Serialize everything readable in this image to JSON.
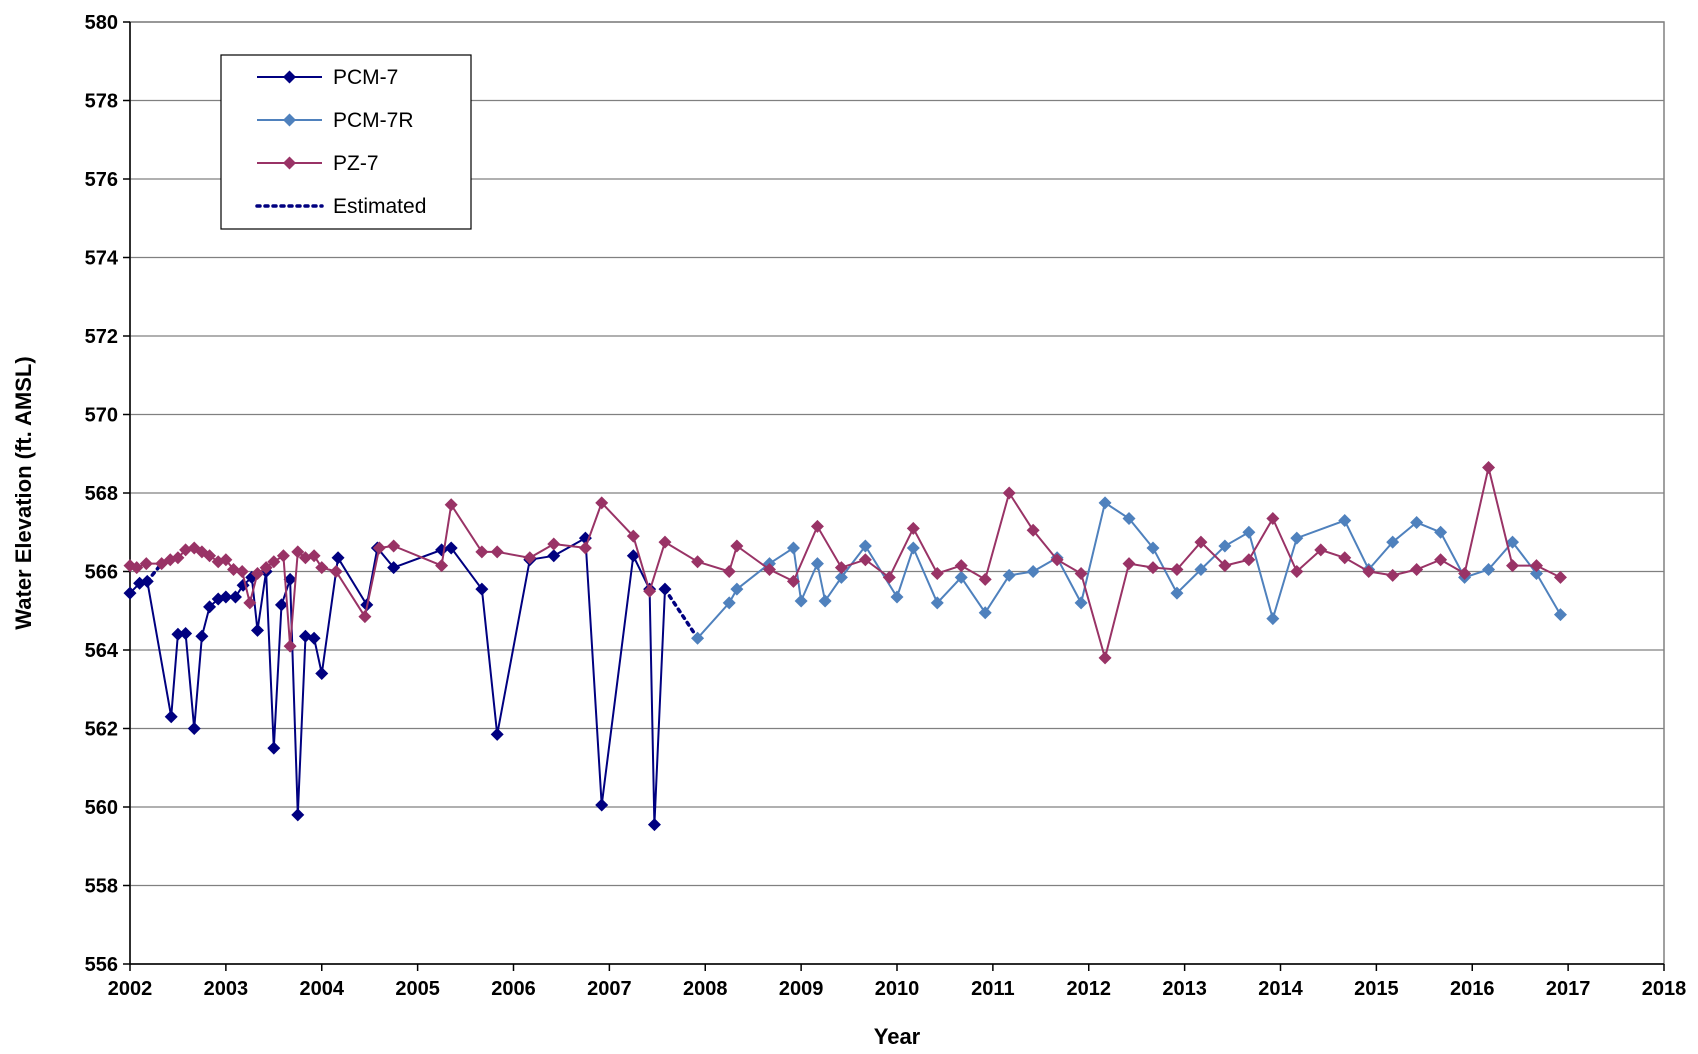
{
  "chart_data": {
    "type": "line",
    "xlabel": "Year",
    "ylabel": "Water Elevation (ft. AMSL)",
    "xlim": [
      2002,
      2018
    ],
    "ylim": [
      556,
      580
    ],
    "x_ticks": [
      2002,
      2003,
      2004,
      2005,
      2006,
      2007,
      2008,
      2009,
      2010,
      2011,
      2012,
      2013,
      2014,
      2015,
      2016,
      2017,
      2018
    ],
    "y_ticks": [
      556,
      558,
      560,
      562,
      564,
      566,
      568,
      570,
      572,
      574,
      576,
      578,
      580
    ],
    "grid": "horizontal",
    "legend_position": "top-left",
    "legend": [
      "PCM-7",
      "PCM-7R",
      "PZ-7",
      "Estimated"
    ],
    "series": [
      {
        "name": "PCM-7",
        "color": "#000080",
        "marker": "diamond",
        "line": "solid",
        "points": [
          [
            2002.0,
            565.45
          ],
          [
            2002.1,
            565.7
          ],
          [
            2002.18,
            565.75
          ],
          [
            2002.43,
            562.3
          ],
          [
            2002.5,
            564.4
          ],
          [
            2002.58,
            564.42
          ],
          [
            2002.67,
            562.0
          ],
          [
            2002.75,
            564.35
          ],
          [
            2002.83,
            565.1
          ],
          [
            2002.92,
            565.3
          ],
          [
            2003.0,
            565.35
          ],
          [
            2003.1,
            565.35
          ],
          [
            2003.18,
            565.65
          ],
          [
            2003.27,
            565.85
          ],
          [
            2003.33,
            564.5
          ],
          [
            2003.42,
            566.0
          ],
          [
            2003.5,
            561.5
          ],
          [
            2003.58,
            565.15
          ],
          [
            2003.67,
            565.8
          ],
          [
            2003.75,
            559.8
          ],
          [
            2003.83,
            564.35
          ],
          [
            2003.92,
            564.3
          ],
          [
            2004.0,
            563.4
          ],
          [
            2004.17,
            566.35
          ],
          [
            2004.47,
            565.15
          ],
          [
            2004.58,
            566.6
          ],
          [
            2004.75,
            566.1
          ],
          [
            2005.25,
            566.55
          ],
          [
            2005.35,
            566.6
          ],
          [
            2005.67,
            565.55
          ],
          [
            2005.83,
            561.85
          ],
          [
            2006.17,
            566.3
          ],
          [
            2006.42,
            566.4
          ],
          [
            2006.75,
            566.85
          ],
          [
            2006.92,
            560.05
          ],
          [
            2007.25,
            566.4
          ],
          [
            2007.42,
            565.55
          ],
          [
            2007.47,
            559.55
          ],
          [
            2007.58,
            565.55
          ]
        ]
      },
      {
        "name": "PCM-7R",
        "color": "#4F81BD",
        "marker": "diamond",
        "line": "solid",
        "points": [
          [
            2007.92,
            564.3
          ],
          [
            2008.25,
            565.2
          ],
          [
            2008.33,
            565.55
          ],
          [
            2008.67,
            566.2
          ],
          [
            2008.92,
            566.6
          ],
          [
            2009.0,
            565.25
          ],
          [
            2009.17,
            566.2
          ],
          [
            2009.25,
            565.25
          ],
          [
            2009.42,
            565.85
          ],
          [
            2009.67,
            566.65
          ],
          [
            2010.0,
            565.35
          ],
          [
            2010.17,
            566.6
          ],
          [
            2010.42,
            565.2
          ],
          [
            2010.67,
            565.85
          ],
          [
            2010.92,
            564.95
          ],
          [
            2011.17,
            565.9
          ],
          [
            2011.42,
            566.0
          ],
          [
            2011.67,
            566.35
          ],
          [
            2011.92,
            565.2
          ],
          [
            2012.17,
            567.75
          ],
          [
            2012.42,
            567.35
          ],
          [
            2012.67,
            566.6
          ],
          [
            2012.92,
            565.45
          ],
          [
            2013.17,
            566.05
          ],
          [
            2013.42,
            566.65
          ],
          [
            2013.67,
            567.0
          ],
          [
            2013.92,
            564.8
          ],
          [
            2014.17,
            566.85
          ],
          [
            2014.67,
            567.3
          ],
          [
            2014.92,
            566.05
          ],
          [
            2015.17,
            566.75
          ],
          [
            2015.42,
            567.25
          ],
          [
            2015.67,
            567.0
          ],
          [
            2015.92,
            565.85
          ],
          [
            2016.17,
            566.05
          ],
          [
            2016.42,
            566.75
          ],
          [
            2016.67,
            565.95
          ],
          [
            2016.92,
            564.9
          ]
        ]
      },
      {
        "name": "PZ-7",
        "color": "#993366",
        "marker": "diamond",
        "line": "solid",
        "points": [
          [
            2002.0,
            566.15
          ],
          [
            2002.07,
            566.1
          ],
          [
            2002.17,
            566.2
          ],
          [
            2002.33,
            566.2
          ],
          [
            2002.42,
            566.3
          ],
          [
            2002.5,
            566.35
          ],
          [
            2002.58,
            566.55
          ],
          [
            2002.67,
            566.6
          ],
          [
            2002.75,
            566.5
          ],
          [
            2002.83,
            566.4
          ],
          [
            2002.92,
            566.25
          ],
          [
            2003.0,
            566.3
          ],
          [
            2003.08,
            566.05
          ],
          [
            2003.17,
            566.0
          ],
          [
            2003.25,
            565.2
          ],
          [
            2003.33,
            565.95
          ],
          [
            2003.42,
            566.1
          ],
          [
            2003.5,
            566.25
          ],
          [
            2003.6,
            566.4
          ],
          [
            2003.67,
            564.1
          ],
          [
            2003.75,
            566.5
          ],
          [
            2003.83,
            566.35
          ],
          [
            2003.92,
            566.4
          ],
          [
            2004.0,
            566.1
          ],
          [
            2004.15,
            566.0
          ],
          [
            2004.45,
            564.85
          ],
          [
            2004.6,
            566.6
          ],
          [
            2004.75,
            566.65
          ],
          [
            2005.25,
            566.15
          ],
          [
            2005.35,
            567.7
          ],
          [
            2005.67,
            566.5
          ],
          [
            2005.83,
            566.5
          ],
          [
            2006.17,
            566.35
          ],
          [
            2006.42,
            566.7
          ],
          [
            2006.75,
            566.6
          ],
          [
            2006.92,
            567.75
          ],
          [
            2007.25,
            566.9
          ],
          [
            2007.42,
            565.5
          ],
          [
            2007.58,
            566.75
          ],
          [
            2007.92,
            566.25
          ],
          [
            2008.25,
            566.0
          ],
          [
            2008.33,
            566.65
          ],
          [
            2008.67,
            566.05
          ],
          [
            2008.92,
            565.75
          ],
          [
            2009.17,
            567.15
          ],
          [
            2009.42,
            566.1
          ],
          [
            2009.67,
            566.3
          ],
          [
            2009.92,
            565.85
          ],
          [
            2010.17,
            567.1
          ],
          [
            2010.42,
            565.95
          ],
          [
            2010.67,
            566.15
          ],
          [
            2010.92,
            565.8
          ],
          [
            2011.17,
            568.0
          ],
          [
            2011.42,
            567.05
          ],
          [
            2011.67,
            566.3
          ],
          [
            2011.92,
            565.95
          ],
          [
            2012.17,
            563.8
          ],
          [
            2012.42,
            566.2
          ],
          [
            2012.67,
            566.1
          ],
          [
            2012.92,
            566.05
          ],
          [
            2013.17,
            566.75
          ],
          [
            2013.42,
            566.15
          ],
          [
            2013.67,
            566.3
          ],
          [
            2013.92,
            567.35
          ],
          [
            2014.17,
            566.0
          ],
          [
            2014.42,
            566.55
          ],
          [
            2014.67,
            566.35
          ],
          [
            2014.92,
            566.0
          ],
          [
            2015.17,
            565.9
          ],
          [
            2015.42,
            566.05
          ],
          [
            2015.67,
            566.3
          ],
          [
            2015.92,
            565.95
          ],
          [
            2016.17,
            568.65
          ],
          [
            2016.42,
            566.15
          ],
          [
            2016.67,
            566.15
          ],
          [
            2016.92,
            565.85
          ]
        ]
      },
      {
        "name": "Estimated",
        "color": "#000080",
        "marker": "none",
        "line": "dotted",
        "points": [
          [
            2007.58,
            565.55
          ],
          [
            2007.92,
            564.3
          ]
        ]
      },
      {
        "name": "",
        "color": "#000080",
        "marker": "none",
        "line": "dotted",
        "points": [
          [
            2002.18,
            565.75
          ],
          [
            2002.33,
            566.2
          ]
        ]
      }
    ]
  }
}
